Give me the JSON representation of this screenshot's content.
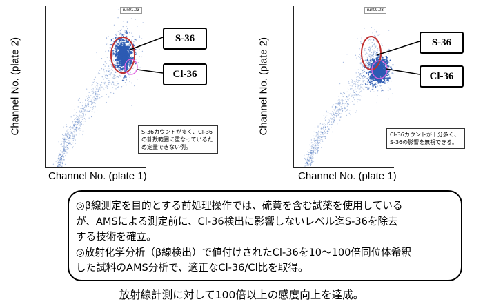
{
  "left_panel": {
    "run_tag": "run01.03",
    "ylabel": "Channel No. (plate 2)",
    "xlabel": "Channel No. (plate 1)",
    "s36_label": "S-36",
    "cl36_label": "Cl-36",
    "note": "S-36カウントが多く、Cl-36の計数範囲に重なっているため定量できない例。"
  },
  "right_panel": {
    "run_tag": "run09.03",
    "ylabel": "Channel No. (plate 2)",
    "xlabel": "Channel No. (plate 1)",
    "s36_label": "S-36",
    "cl36_label": "Cl-36",
    "note": "Cl-36カウントが十分多く、S-36の影響を無視できる。"
  },
  "summary": {
    "line1": "◎β線測定を目的とする前処理操作では、硫黄を含む試薬を使用している",
    "line2": "が、AMSによる測定前に、Cl-36検出に影響しないレベル迄S-36を除去",
    "line3": "する技術を確立。",
    "line4": "◎放射化学分析（β線検出）で値付けされたCl-36を10～100倍同位体希釈",
    "line5": "した試料のAMS分析で、適正なCl-36/Cl比を取得。"
  },
  "footer": "放射線計測に対して100倍以上の感度向上を達成。",
  "colors": {
    "dots": "#2c5bb3",
    "s36_ring": "#c03030",
    "cl36_ring": "#e060e0"
  }
}
